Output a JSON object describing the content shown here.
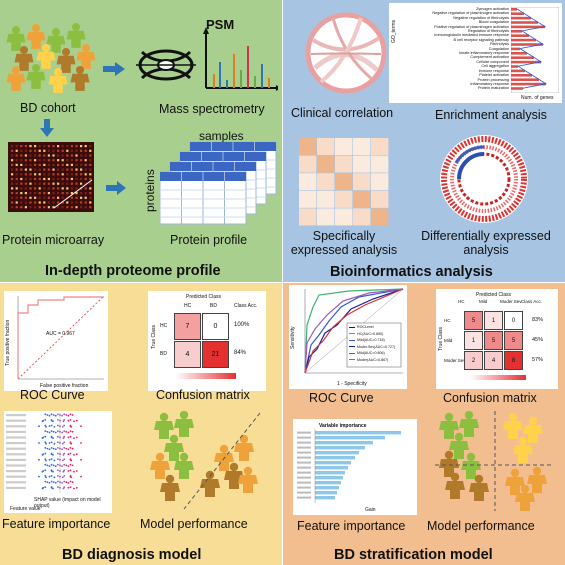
{
  "in_depth_proteome": {
    "title": "In-depth proteome profile",
    "bd_cohort": "BD cohort",
    "mass_spectrometry": "Mass spectrometry",
    "psm": "PSM",
    "protein_microarray": "Protein microarray",
    "protein_profile": "Protein profile",
    "samples": "samples",
    "proteins": "proteins"
  },
  "bioinformatics": {
    "title": "Bioinformatics analysis",
    "clinical_correlation": "Clinical correlation",
    "enrichment_analysis": "Enrichment analysis",
    "specifically_expressed": "Specifically expressed analysis",
    "differentially_expressed": "Differentially expressed analysis",
    "enrichment_terms": [
      "Zymogen activation",
      "Negative regulation of plasminogen activation",
      "Negative regulation of fibrinolysis",
      "Blood coagulation",
      "Positive regulation of plasminogen activation",
      "Regulation of fibrinolysis",
      "Immunoglobulin mediated immune response",
      "B cell receptor signaling pathway",
      "Fibrinolysis",
      "Coagulation",
      "Innate inflammatory response",
      "Complement activation",
      "Cellular component",
      "Cell aggregation",
      "Immune response",
      "Platelet activation",
      "Protein processing",
      "Inflammatory response",
      "Protein maturation"
    ],
    "enrichment_xlabel": "Num. of genes",
    "enrichment_ylabel": "GO_terms"
  },
  "diagnosis": {
    "title": "BD diagnosis model",
    "roc_curve": "ROC Curve",
    "confusion_matrix": "Confusion matrix",
    "feature_importance": "Feature importance",
    "model_performance": "Model performance",
    "auc_text": "AUC = 0.967",
    "roc_ylabel": "True positive fraction",
    "roc_xlabel": "False positive fraction",
    "cm_title": "Predicted Class",
    "cm_ylabel": "True Class",
    "cm_col_hc": "HC",
    "cm_col_bd": "BD",
    "cm_col_acc": "Class Acc.",
    "cm_rows": [
      {
        "label": "HC",
        "cells": [
          "7",
          "0"
        ],
        "acc": "100%"
      },
      {
        "label": "BD",
        "cells": [
          "4",
          "21"
        ],
        "acc": "84%"
      }
    ],
    "fi_xlabel": "SHAP value (impact on model output)",
    "fi_legend": "Feature value"
  },
  "stratification": {
    "title": "BD stratification model",
    "roc_curve": "ROC Curve",
    "confusion_matrix": "Confusion matrix",
    "feature_importance": "Feature importance",
    "model_performance": "Model performance",
    "roc_ylabel": "Sensitivity",
    "roc_xlabel": "1 - Specificity",
    "roc_legend_title": "ROCLevel",
    "roc_legend": [
      "HC(AUC=0.890)",
      "Mild(AUC=0.718)",
      "Moder.Sev(AUC=0.727)",
      "Mild(AUC=0.806)",
      "Moder(AUC=0.867)"
    ],
    "cm_title": "Predicted Class",
    "cm_ylabel": "True Class",
    "cm_cols": [
      "HC",
      "Mild",
      "Moder.Sev",
      "Class Acc."
    ],
    "cm_rows": [
      {
        "label": "HC",
        "cells": [
          "5",
          "1",
          "0"
        ],
        "acc": "83%"
      },
      {
        "label": "Mild",
        "cells": [
          "1",
          "5",
          "5"
        ],
        "acc": "45%"
      },
      {
        "label": "Moder.Sev",
        "cells": [
          "2",
          "4",
          "8"
        ],
        "acc": "57%"
      }
    ],
    "vi_title": "Variable importance",
    "vi_xlabel": "Gain"
  },
  "colors": {
    "q1": "#a9cf8f",
    "q2": "#a7c4e3",
    "q3": "#f7dd96",
    "q4": "#f3be8f",
    "arrow": "#2e75b6",
    "green_person": "#8cbf3f",
    "orange_person": "#f0a23a",
    "brown_person": "#b07a2a",
    "yellow_person": "#ffd24a"
  }
}
